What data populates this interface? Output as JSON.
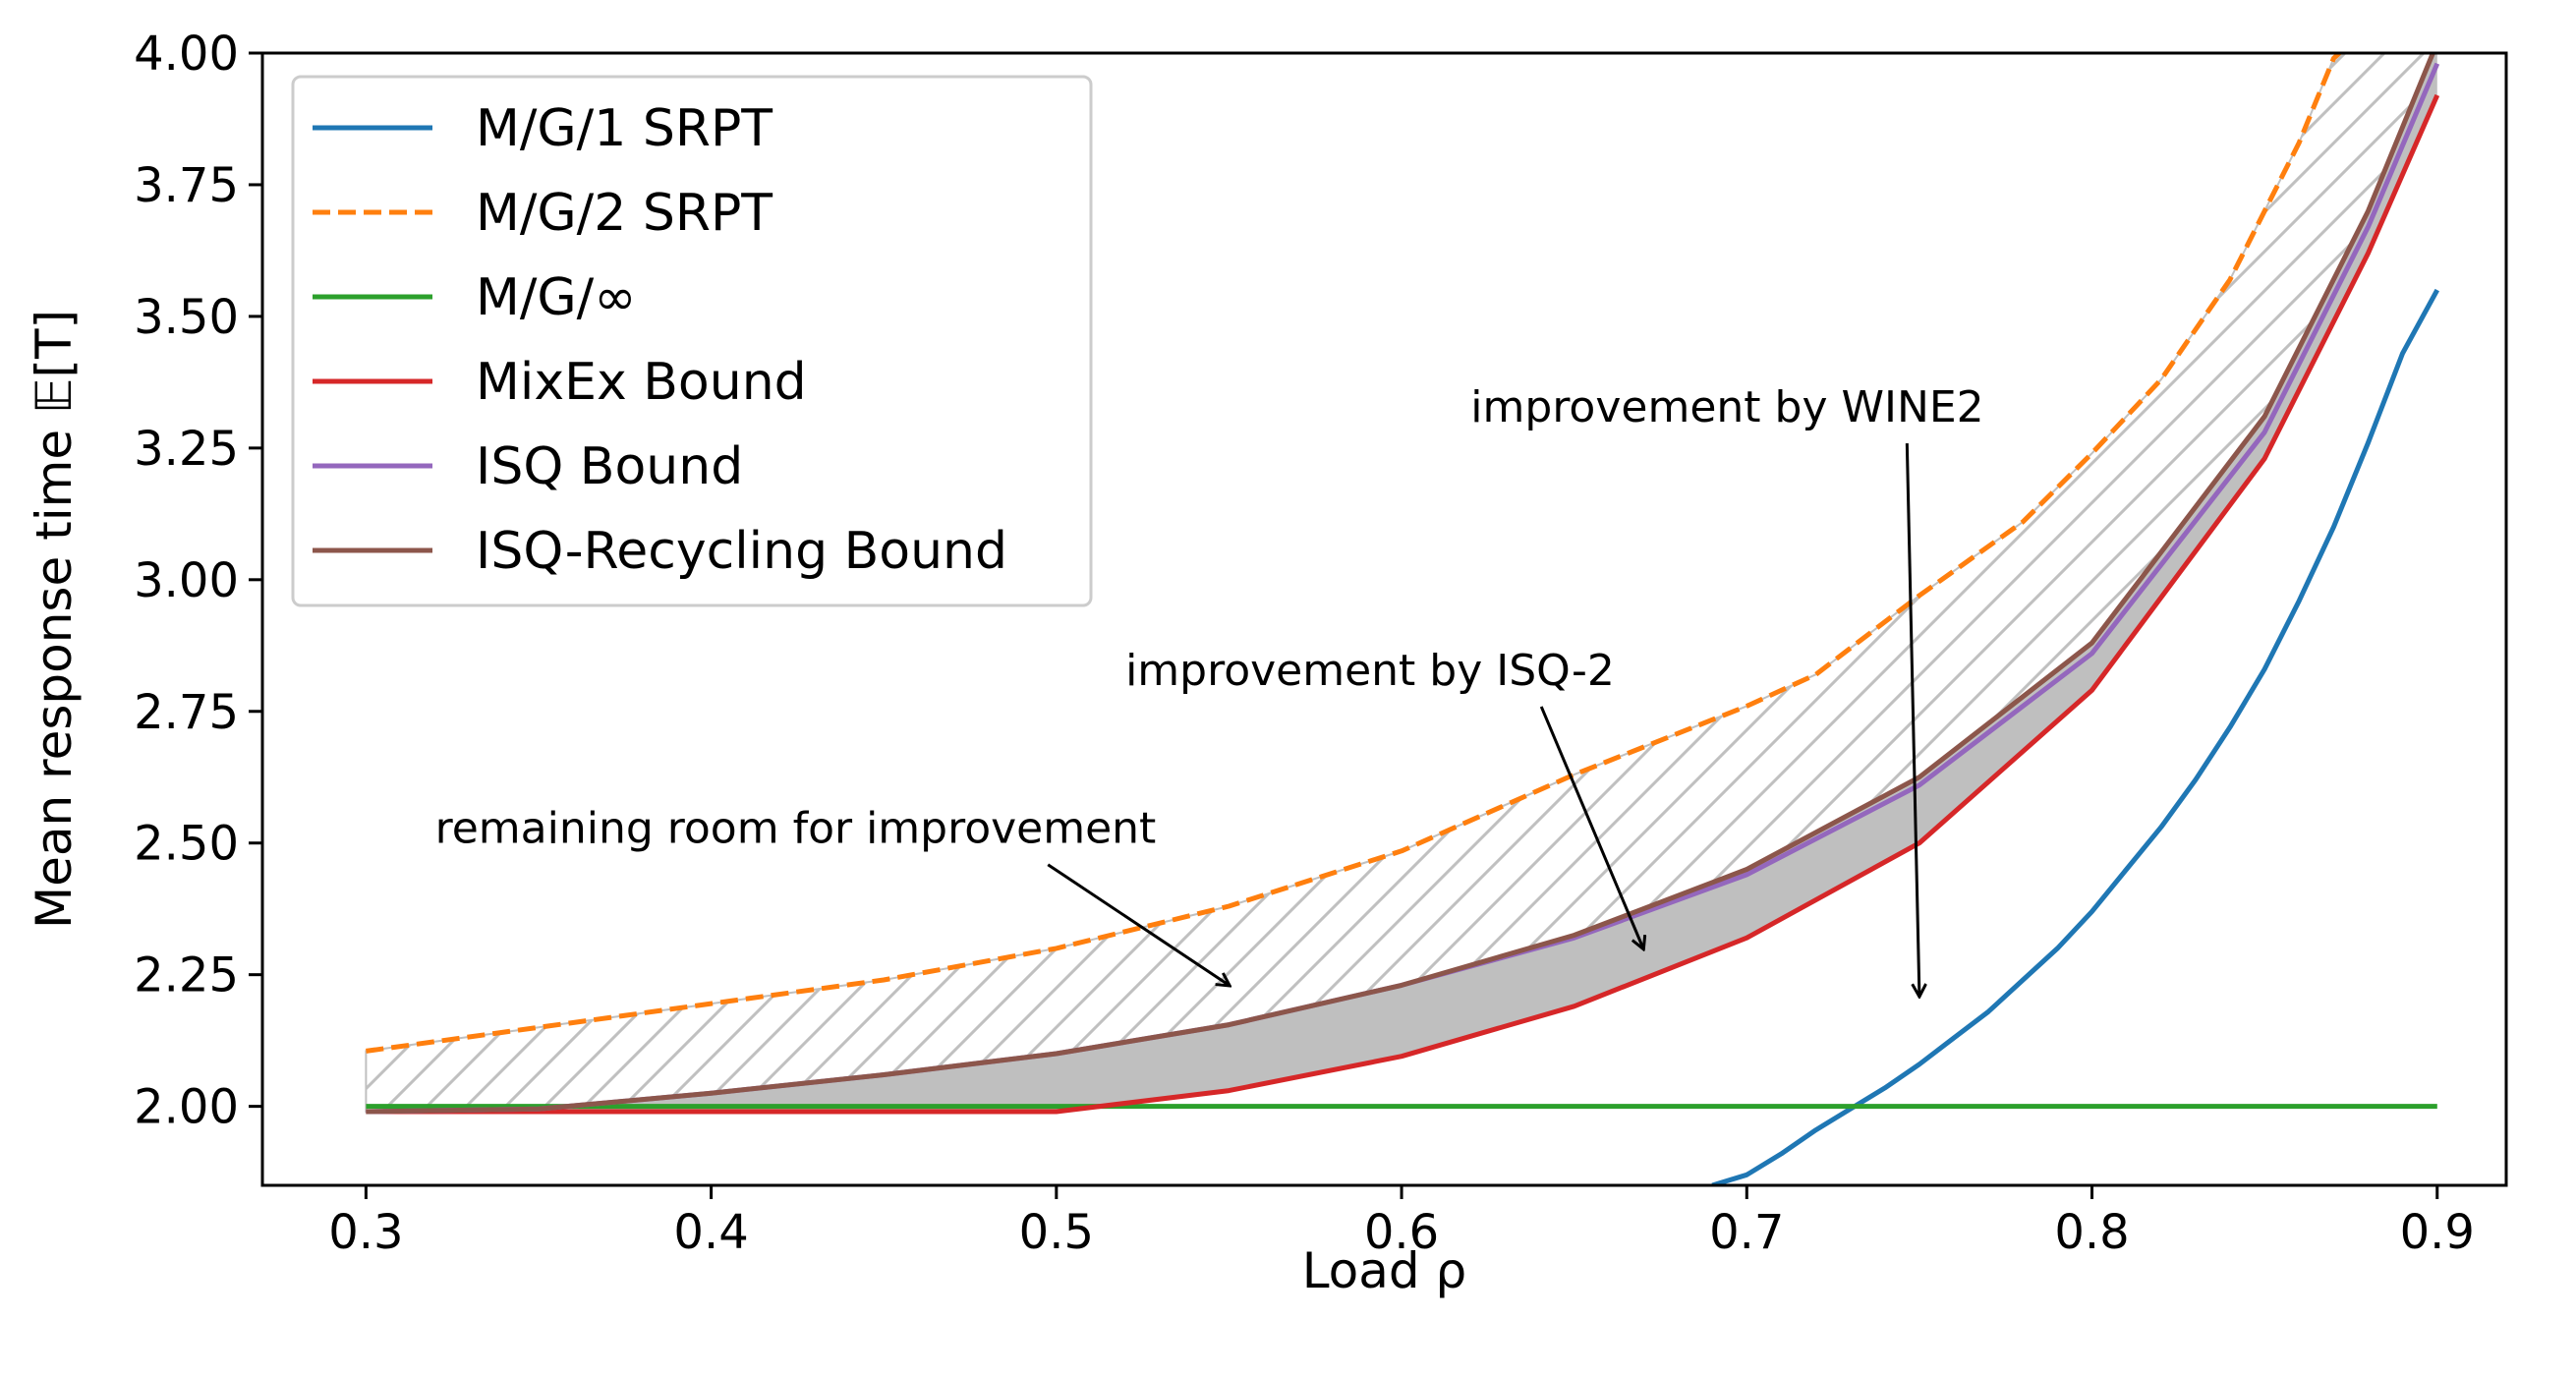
{
  "chart_data": {
    "type": "line",
    "xlabel": "Load ρ",
    "ylabel": "Mean response time 𝔼[T]",
    "xlim": [
      0.27,
      0.92
    ],
    "ylim": [
      1.85,
      4.0
    ],
    "xticks": [
      0.3,
      0.4,
      0.5,
      0.6,
      0.7,
      0.8,
      0.9
    ],
    "yticks": [
      2.0,
      2.25,
      2.5,
      2.75,
      3.0,
      3.25,
      3.5,
      3.75,
      4.0
    ],
    "grid": false,
    "legend_position": "top-left",
    "series": [
      {
        "name": "M/G/1 SRPT",
        "color": "#1f77b4",
        "style": "solid",
        "x": [
          0.69,
          0.7,
          0.71,
          0.72,
          0.73,
          0.74,
          0.75,
          0.76,
          0.77,
          0.78,
          0.79,
          0.8,
          0.81,
          0.82,
          0.83,
          0.84,
          0.85,
          0.86,
          0.87,
          0.88,
          0.89,
          0.9
        ],
        "y": [
          1.85,
          1.87,
          1.91,
          1.955,
          1.995,
          2.035,
          2.08,
          2.13,
          2.18,
          2.24,
          2.3,
          2.37,
          2.45,
          2.53,
          2.62,
          2.72,
          2.83,
          2.96,
          3.1,
          3.26,
          3.43,
          3.55
        ]
      },
      {
        "name": "M/G/2 SRPT",
        "color": "#ff7f0e",
        "style": "dashed",
        "x": [
          0.3,
          0.35,
          0.4,
          0.45,
          0.5,
          0.55,
          0.6,
          0.65,
          0.7,
          0.72,
          0.75,
          0.78,
          0.8,
          0.82,
          0.84,
          0.86,
          0.87,
          0.88,
          0.9
        ],
        "y": [
          2.105,
          2.15,
          2.195,
          2.24,
          2.3,
          2.38,
          2.485,
          2.63,
          2.76,
          2.82,
          2.97,
          3.11,
          3.24,
          3.38,
          3.57,
          3.83,
          3.99,
          4.05,
          4.15
        ]
      },
      {
        "name": "M/G/∞",
        "color": "#2ca02c",
        "style": "solid",
        "x": [
          0.3,
          0.9
        ],
        "y": [
          2.0,
          2.0
        ]
      },
      {
        "name": "MixEx Bound",
        "color": "#d62728",
        "style": "solid",
        "x": [
          0.3,
          0.4,
          0.5,
          0.55,
          0.6,
          0.65,
          0.7,
          0.75,
          0.8,
          0.85,
          0.88,
          0.9
        ],
        "y": [
          1.99,
          1.99,
          1.99,
          2.03,
          2.095,
          2.19,
          2.32,
          2.5,
          2.79,
          3.23,
          3.62,
          3.92
        ]
      },
      {
        "name": "ISQ Bound",
        "color": "#9467bd",
        "style": "solid",
        "x": [
          0.3,
          0.35,
          0.4,
          0.45,
          0.5,
          0.55,
          0.6,
          0.65,
          0.7,
          0.75,
          0.8,
          0.85,
          0.88,
          0.9
        ],
        "y": [
          1.99,
          1.995,
          2.025,
          2.06,
          2.1,
          2.155,
          2.23,
          2.32,
          2.44,
          2.61,
          2.86,
          3.28,
          3.67,
          3.98
        ]
      },
      {
        "name": "ISQ-Recycling Bound",
        "color": "#8c564b",
        "style": "solid",
        "x": [
          0.3,
          0.35,
          0.4,
          0.45,
          0.5,
          0.55,
          0.6,
          0.65,
          0.7,
          0.75,
          0.8,
          0.85,
          0.88,
          0.9
        ],
        "y": [
          1.99,
          1.995,
          2.025,
          2.06,
          2.1,
          2.155,
          2.23,
          2.325,
          2.45,
          2.625,
          2.88,
          3.31,
          3.7,
          4.02
        ]
      }
    ],
    "shaded_regions": [
      {
        "between": [
          "ISQ-Recycling Bound",
          "MixEx Bound"
        ],
        "fill": "#bfbfbf",
        "hatch": "none"
      },
      {
        "between": [
          "M/G/2 SRPT",
          "ISQ-Recycling Bound"
        ],
        "fill": "none",
        "hatch": "diagonal",
        "hatch_color": "#c0c0c0"
      }
    ],
    "annotations": [
      {
        "text": "remaining room for improvement",
        "text_x": 0.32,
        "text_y": 2.5,
        "arrow_x": 0.55,
        "arrow_y": 2.23
      },
      {
        "text": "improvement by ISQ-2",
        "text_x": 0.52,
        "text_y": 2.8,
        "arrow_x": 0.67,
        "arrow_y": 2.3
      },
      {
        "text": "improvement by WINE2",
        "text_x": 0.62,
        "text_y": 3.3,
        "arrow_x": 0.75,
        "arrow_y": 2.21
      }
    ]
  }
}
